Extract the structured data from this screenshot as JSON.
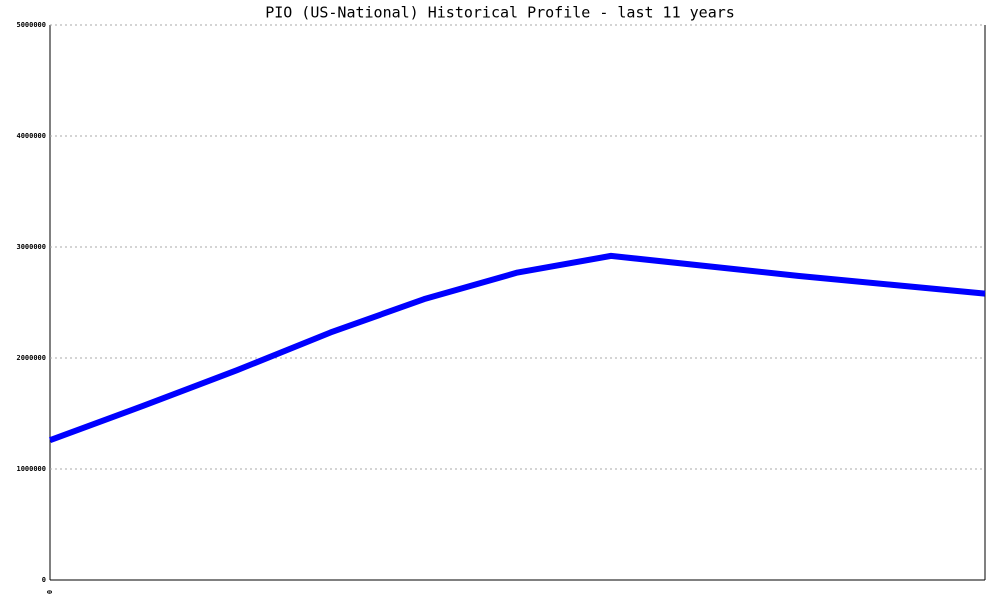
{
  "chart_data": {
    "type": "line",
    "title": "PIO (US-National) Historical Profile - last 11 years",
    "categories": [
      "0",
      null,
      null,
      null,
      null,
      null,
      null,
      null,
      null,
      null,
      null
    ],
    "series": [
      {
        "color": "#0000ff",
        "values": [
          1260000,
          1570000,
          1890000,
          2230000,
          2530000,
          2770000,
          2920000,
          2830000,
          2740000,
          2660000,
          2580000
        ]
      }
    ],
    "ylim": [
      0,
      5000000
    ],
    "yticks": [
      0,
      1000000,
      2000000,
      3000000,
      4000000,
      5000000
    ],
    "grid": true
  }
}
